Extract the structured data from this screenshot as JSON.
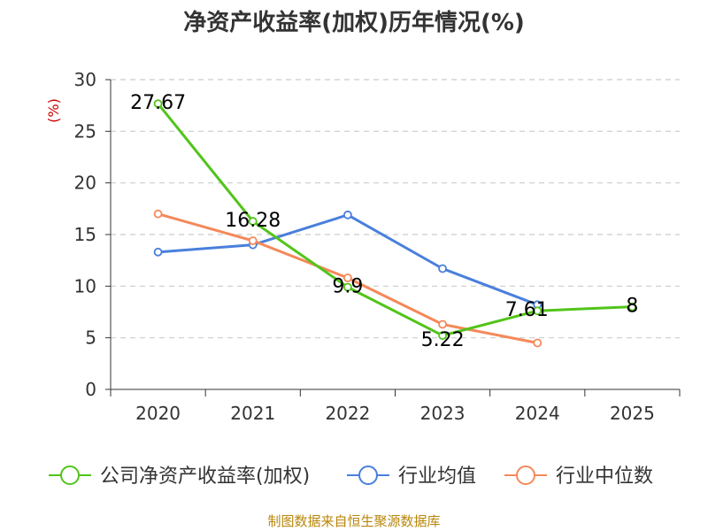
{
  "chart_data": {
    "type": "line",
    "title": "净资产收益率(加权)历年情况(%)",
    "ylabel": "(%)",
    "xlabel": "",
    "categories": [
      "2020",
      "2021",
      "2022",
      "2023",
      "2024",
      "2025"
    ],
    "ylim": [
      0,
      30
    ],
    "yticks": [
      0,
      5,
      10,
      15,
      20,
      25,
      30
    ],
    "grid": "horizontal-dashed",
    "legend_position": "bottom",
    "series": [
      {
        "name": "公司净资产收益率(加权)",
        "color": "#52c41a",
        "values": [
          27.67,
          16.28,
          9.9,
          5.22,
          7.61,
          8
        ],
        "labels": [
          "27.67",
          "16.28",
          "9.9",
          "5.22",
          "7.61",
          "8"
        ]
      },
      {
        "name": "行业均值",
        "color": "#4a7fdc",
        "values": [
          13.3,
          14.0,
          16.9,
          11.7,
          8.2,
          null
        ]
      },
      {
        "name": "行业中位数",
        "color": "#f4895a",
        "values": [
          17.0,
          14.4,
          10.8,
          6.3,
          4.5,
          null
        ]
      }
    ],
    "source": "制图数据来自恒生聚源数据库"
  }
}
